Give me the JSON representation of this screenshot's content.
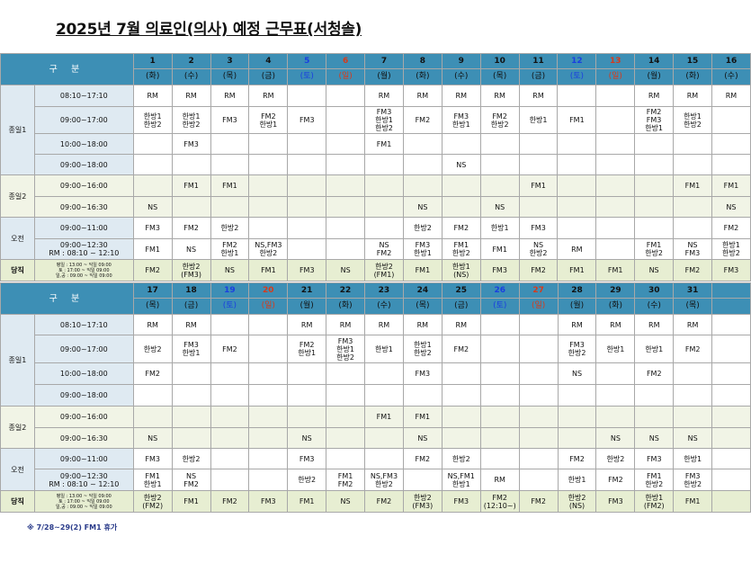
{
  "title": "2025년 7월  의료인(의사) 예정 근무표(서청솔)",
  "gubun": "구  분",
  "note": "※ 7/28~29(2) FM1 휴가",
  "dang_time": [
    "평일 : 13:00 ~ 익일 09:00",
    "토   : 17:00 ~ 익일 09:00",
    "일,공 : 09:00 ~ 익일 09:00"
  ],
  "colors": {
    "header": "#3d8fb5",
    "saturday": "#1a3fe0",
    "sunday": "#d83a1a"
  },
  "weeks": [
    {
      "days": [
        {
          "num": "1",
          "dow": "(화)",
          "kind": ""
        },
        {
          "num": "2",
          "dow": "(수)",
          "kind": ""
        },
        {
          "num": "3",
          "dow": "(목)",
          "kind": ""
        },
        {
          "num": "4",
          "dow": "(금)",
          "kind": ""
        },
        {
          "num": "5",
          "dow": "(토)",
          "kind": "sat"
        },
        {
          "num": "6",
          "dow": "(일)",
          "kind": "sun"
        },
        {
          "num": "7",
          "dow": "(월)",
          "kind": ""
        },
        {
          "num": "8",
          "dow": "(화)",
          "kind": ""
        },
        {
          "num": "9",
          "dow": "(수)",
          "kind": ""
        },
        {
          "num": "10",
          "dow": "(목)",
          "kind": ""
        },
        {
          "num": "11",
          "dow": "(금)",
          "kind": ""
        },
        {
          "num": "12",
          "dow": "(토)",
          "kind": "sat"
        },
        {
          "num": "13",
          "dow": "(일)",
          "kind": "sun"
        },
        {
          "num": "14",
          "dow": "(월)",
          "kind": ""
        },
        {
          "num": "15",
          "dow": "(화)",
          "kind": ""
        },
        {
          "num": "16",
          "dow": "(수)",
          "kind": ""
        }
      ],
      "rows": [
        {
          "cat": "종일1",
          "span": 4,
          "group": "g1",
          "time": [
            "08:10~17:10"
          ],
          "h": 24,
          "cells": [
            "RM",
            "RM",
            "RM",
            "RM",
            "",
            "",
            "RM",
            "RM",
            "RM",
            "RM",
            "RM",
            "",
            "",
            "RM",
            "RM",
            "RM"
          ]
        },
        {
          "group": "g1",
          "time": [
            "09:00~17:00"
          ],
          "h": 30,
          "cells": [
            "한방1\n한방2",
            "한방1\n한방2",
            "FM3",
            "FM2\n한방1",
            "FM3",
            "",
            "FM3\n한방1\n한방2",
            "FM2",
            "FM3\n한방1",
            "FM2\n한방2",
            "한방1",
            "FM1",
            "",
            "FM2\nFM3\n한방1",
            "한방1\n한방2",
            ""
          ]
        },
        {
          "group": "g1",
          "time": [
            "10:00~18:00"
          ],
          "h": 23,
          "cells": [
            "",
            "FM3",
            "",
            "",
            "",
            "",
            "FM1",
            "",
            "",
            "",
            "",
            "",
            "",
            "",
            "",
            ""
          ]
        },
        {
          "group": "g1",
          "time": [
            "09:00~18:00"
          ],
          "h": 23,
          "cells": [
            "",
            "",
            "",
            "",
            "",
            "",
            "",
            "",
            "NS",
            "",
            "",
            "",
            "",
            "",
            "",
            ""
          ]
        },
        {
          "cat": "종일2",
          "span": 2,
          "group": "g2",
          "time": [
            "09:00~16:00"
          ],
          "h": 24,
          "cells": [
            "",
            "FM1",
            "FM1",
            "",
            "",
            "",
            "",
            "",
            "",
            "",
            "FM1",
            "",
            "",
            "",
            "FM1",
            "FM1"
          ]
        },
        {
          "group": "g2",
          "time": [
            "09:00~16:30"
          ],
          "h": 23,
          "cells": [
            "NS",
            "",
            "",
            "",
            "",
            "",
            "",
            "NS",
            "",
            "NS",
            "",
            "",
            "",
            "",
            "",
            "NS"
          ]
        },
        {
          "cat": "오전",
          "span": 2,
          "group": "g3",
          "time": [
            "09:00~11:00"
          ],
          "h": 24,
          "cells": [
            "FM3",
            "FM2",
            "한방2",
            "",
            "",
            "",
            "",
            "한방2",
            "FM2",
            "한방1",
            "FM3",
            "",
            "",
            "",
            "",
            "FM2"
          ]
        },
        {
          "group": "g3",
          "time": [
            "09:00~12:30",
            "RM : 08:10 ~ 12:10"
          ],
          "h": 23,
          "cells": [
            "FM1",
            "NS",
            "FM2\n한방1",
            "NS,FM3\n한방2",
            "",
            "",
            "NS\nFM2",
            "FM3\n한방1",
            "FM1\n한방2",
            "FM1",
            "NS\n한방2",
            "RM",
            "",
            "FM1\n한방2",
            "NS\nFM3",
            "한방1\n한방2"
          ]
        }
      ],
      "dang": [
        "FM2",
        "한방2\n(FM3)",
        "NS",
        "FM1",
        "FM3",
        "NS",
        "한방2\n(FM1)",
        "FM1",
        "한방1\n(NS)",
        "FM3",
        "FM2",
        "FM1",
        "FM1",
        "NS",
        "FM2",
        "FM3"
      ]
    },
    {
      "days": [
        {
          "num": "17",
          "dow": "(목)",
          "kind": ""
        },
        {
          "num": "18",
          "dow": "(금)",
          "kind": ""
        },
        {
          "num": "19",
          "dow": "(토)",
          "kind": "sat"
        },
        {
          "num": "20",
          "dow": "(일)",
          "kind": "sun"
        },
        {
          "num": "21",
          "dow": "(월)",
          "kind": ""
        },
        {
          "num": "22",
          "dow": "(화)",
          "kind": ""
        },
        {
          "num": "23",
          "dow": "(수)",
          "kind": ""
        },
        {
          "num": "24",
          "dow": "(목)",
          "kind": ""
        },
        {
          "num": "25",
          "dow": "(금)",
          "kind": ""
        },
        {
          "num": "26",
          "dow": "(토)",
          "kind": "sat"
        },
        {
          "num": "27",
          "dow": "(일)",
          "kind": "sun"
        },
        {
          "num": "28",
          "dow": "(월)",
          "kind": ""
        },
        {
          "num": "29",
          "dow": "(화)",
          "kind": ""
        },
        {
          "num": "30",
          "dow": "(수)",
          "kind": ""
        },
        {
          "num": "31",
          "dow": "(목)",
          "kind": ""
        },
        {
          "num": "",
          "dow": "",
          "kind": ""
        }
      ],
      "rows": [
        {
          "cat": "종일1",
          "span": 4,
          "group": "g1",
          "time": [
            "08:10~17:10"
          ],
          "h": 23,
          "cells": [
            "RM",
            "RM",
            "",
            "",
            "RM",
            "RM",
            "RM",
            "RM",
            "RM",
            "",
            "",
            "RM",
            "RM",
            "RM",
            "RM",
            ""
          ]
        },
        {
          "group": "g1",
          "time": [
            "09:00~17:00"
          ],
          "h": 31,
          "cells": [
            "한방2",
            "FM3\n한방1",
            "FM2",
            "",
            "FM2\n한방1",
            "FM3\n한방1\n한방2",
            "한방1",
            "한방1\n한방2",
            "FM2",
            "",
            "",
            "FM3\n한방2",
            "한방1",
            "한방1",
            "FM2",
            ""
          ]
        },
        {
          "group": "g1",
          "time": [
            "10:00~18:00"
          ],
          "h": 24,
          "cells": [
            "FM2",
            "",
            "",
            "",
            "",
            "",
            "",
            "FM3",
            "",
            "",
            "",
            "NS",
            "",
            "FM2",
            "",
            ""
          ]
        },
        {
          "group": "g1",
          "time": [
            "09:00~18:00"
          ],
          "h": 24,
          "cells": [
            "",
            "",
            "",
            "",
            "",
            "",
            "",
            "",
            "",
            "",
            "",
            "",
            "",
            "",
            "",
            ""
          ]
        },
        {
          "cat": "종일2",
          "span": 2,
          "group": "g2",
          "time": [
            "09:00~16:00"
          ],
          "h": 24,
          "cells": [
            "",
            "",
            "",
            "",
            "",
            "",
            "FM1",
            "FM1",
            "",
            "",
            "",
            "",
            "",
            "",
            "",
            ""
          ]
        },
        {
          "group": "g2",
          "time": [
            "09:00~16:30"
          ],
          "h": 23,
          "cells": [
            "NS",
            "",
            "",
            "",
            "NS",
            "",
            "",
            "NS",
            "",
            "",
            "",
            "",
            "NS",
            "NS",
            "NS",
            ""
          ]
        },
        {
          "cat": "오전",
          "span": 2,
          "group": "g3",
          "time": [
            "09:00~11:00"
          ],
          "h": 23,
          "cells": [
            "FM3",
            "한방2",
            "",
            "",
            "FM3",
            "",
            "",
            "FM2",
            "한방2",
            "",
            "",
            "FM2",
            "한방2",
            "FM3",
            "한방1",
            ""
          ]
        },
        {
          "group": "g3",
          "time": [
            "09:00~12:30",
            "RM : 08:10 ~ 12:10"
          ],
          "h": 24,
          "cells": [
            "FM1\n한방1",
            "NS\nFM2",
            "",
            "",
            "한방2",
            "FM1\nFM2",
            "NS,FM3\n한방2",
            "",
            "NS,FM1\n한방1",
            "RM",
            "",
            "한방1",
            "FM2",
            "FM1\n한방2",
            "FM3\n한방2",
            ""
          ]
        }
      ],
      "dang": [
        "한방2\n(FM2)",
        "FM1",
        "FM2",
        "FM3",
        "FM1",
        "NS",
        "FM2",
        "한방2\n(FM3)",
        "FM3",
        "FM2\n(12:10~)",
        "FM2",
        "한방2\n(NS)",
        "FM3",
        "한방1\n(FM2)",
        "FM1",
        ""
      ]
    }
  ]
}
